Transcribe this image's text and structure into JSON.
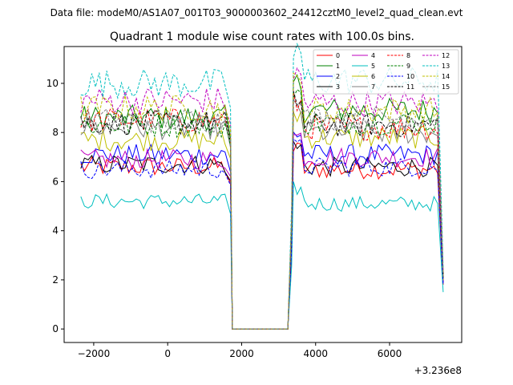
{
  "suptitle": "Data file: modeM0/AS1A07_001T03_9000003602_24412cztM0_level2_quad_clean.evt",
  "chart_data": {
    "type": "line",
    "title": "Quadrant 1 module wise count rates with 100.0s bins.",
    "xlabel": "",
    "ylabel": "",
    "x_offset_label": "+3.236e8",
    "xlim": [
      -2800,
      7950
    ],
    "ylim": [
      -0.55,
      11.5
    ],
    "x_ticks": [
      -2000,
      0,
      2000,
      4000,
      6000
    ],
    "x_tick_labels": [
      "−2000",
      "0",
      "2000",
      "4000",
      "6000"
    ],
    "y_ticks": [
      0,
      2,
      4,
      6,
      8,
      10
    ],
    "y_tick_labels": [
      "0",
      "2",
      "4",
      "6",
      "8",
      "10"
    ],
    "legend_location": "upper right",
    "segments": {
      "first_start": -2350,
      "first_end": 1600,
      "first_drop": 1750,
      "gap_start": 1750,
      "gap_end": 3250,
      "second_start": 3400,
      "second_end": 7350,
      "second_drop": 7450,
      "bin": 100
    },
    "series": [
      {
        "name": "0",
        "color": "#ff0000",
        "dash": "solid",
        "level1": 6.6,
        "level2": 6.5,
        "last": 1.8
      },
      {
        "name": "1",
        "color": "#008000",
        "dash": "solid",
        "level1": 8.6,
        "level2": 8.9,
        "last": 2.2
      },
      {
        "name": "2",
        "color": "#0000ff",
        "dash": "solid",
        "level1": 7.1,
        "level2": 7.1,
        "last": 1.9
      },
      {
        "name": "3",
        "color": "#000000",
        "dash": "solid",
        "level1": 6.7,
        "level2": 6.6,
        "last": 1.9
      },
      {
        "name": "4",
        "color": "#bf00bf",
        "dash": "solid",
        "level1": 6.9,
        "level2": 7.0,
        "last": 1.9
      },
      {
        "name": "5",
        "color": "#00bfbf",
        "dash": "solid",
        "level1": 5.2,
        "level2": 5.1,
        "last": 1.5
      },
      {
        "name": "6",
        "color": "#bfbf00",
        "dash": "solid",
        "level1": 7.7,
        "level2": 7.8,
        "last": 2.0
      },
      {
        "name": "7",
        "color": "#808080",
        "dash": "solid",
        "level1": 8.2,
        "level2": 8.0,
        "last": 2.1
      },
      {
        "name": "8",
        "color": "#ff0000",
        "dash": "dashed",
        "level1": 8.5,
        "level2": 8.2,
        "last": 2.1
      },
      {
        "name": "9",
        "color": "#008000",
        "dash": "dashed",
        "level1": 8.3,
        "level2": 8.4,
        "last": 2.1
      },
      {
        "name": "10",
        "color": "#0000ff",
        "dash": "dashed",
        "level1": 6.5,
        "level2": 6.6,
        "last": 1.8
      },
      {
        "name": "11",
        "color": "#000000",
        "dash": "dashed",
        "level1": 8.4,
        "level2": 8.3,
        "last": 2.1
      },
      {
        "name": "12",
        "color": "#bf00bf",
        "dash": "dashed",
        "level1": 9.3,
        "level2": 9.2,
        "last": 2.3
      },
      {
        "name": "13",
        "color": "#00bfbf",
        "dash": "dashed",
        "level1": 10.0,
        "level2": 10.1,
        "last": 2.5
      },
      {
        "name": "14",
        "color": "#bfbf00",
        "dash": "dashed",
        "level1": 9.0,
        "level2": 8.9,
        "last": 2.2
      },
      {
        "name": "15",
        "color": "#808080",
        "dash": "dashed",
        "level1": 8.5,
        "level2": 8.6,
        "last": 2.1
      }
    ]
  }
}
